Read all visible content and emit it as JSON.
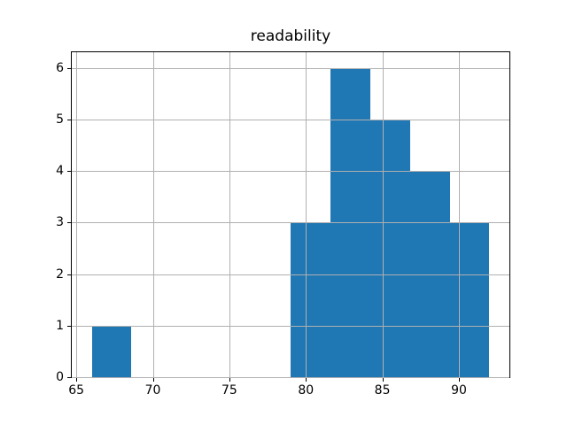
{
  "chart_data": {
    "type": "bar",
    "subtype": "histogram",
    "title": "readability",
    "xlabel": "",
    "ylabel": "",
    "bin_edges": [
      66.0,
      68.6,
      71.2,
      73.8,
      76.4,
      79.0,
      81.6,
      84.2,
      86.8,
      89.4,
      92.0
    ],
    "counts": [
      1,
      0,
      0,
      0,
      0,
      3,
      6,
      5,
      4,
      3
    ],
    "x_ticks": [
      65,
      70,
      75,
      80,
      85,
      90
    ],
    "y_ticks": [
      0,
      1,
      2,
      3,
      4,
      5,
      6
    ],
    "xlim": [
      64.7,
      93.3
    ],
    "ylim": [
      0,
      6.3
    ],
    "grid": true,
    "legend": false,
    "bar_color": "#1f77b4",
    "grid_color": "#b0b0b0",
    "axis_color": "#000000",
    "background_color": "#ffffff"
  }
}
